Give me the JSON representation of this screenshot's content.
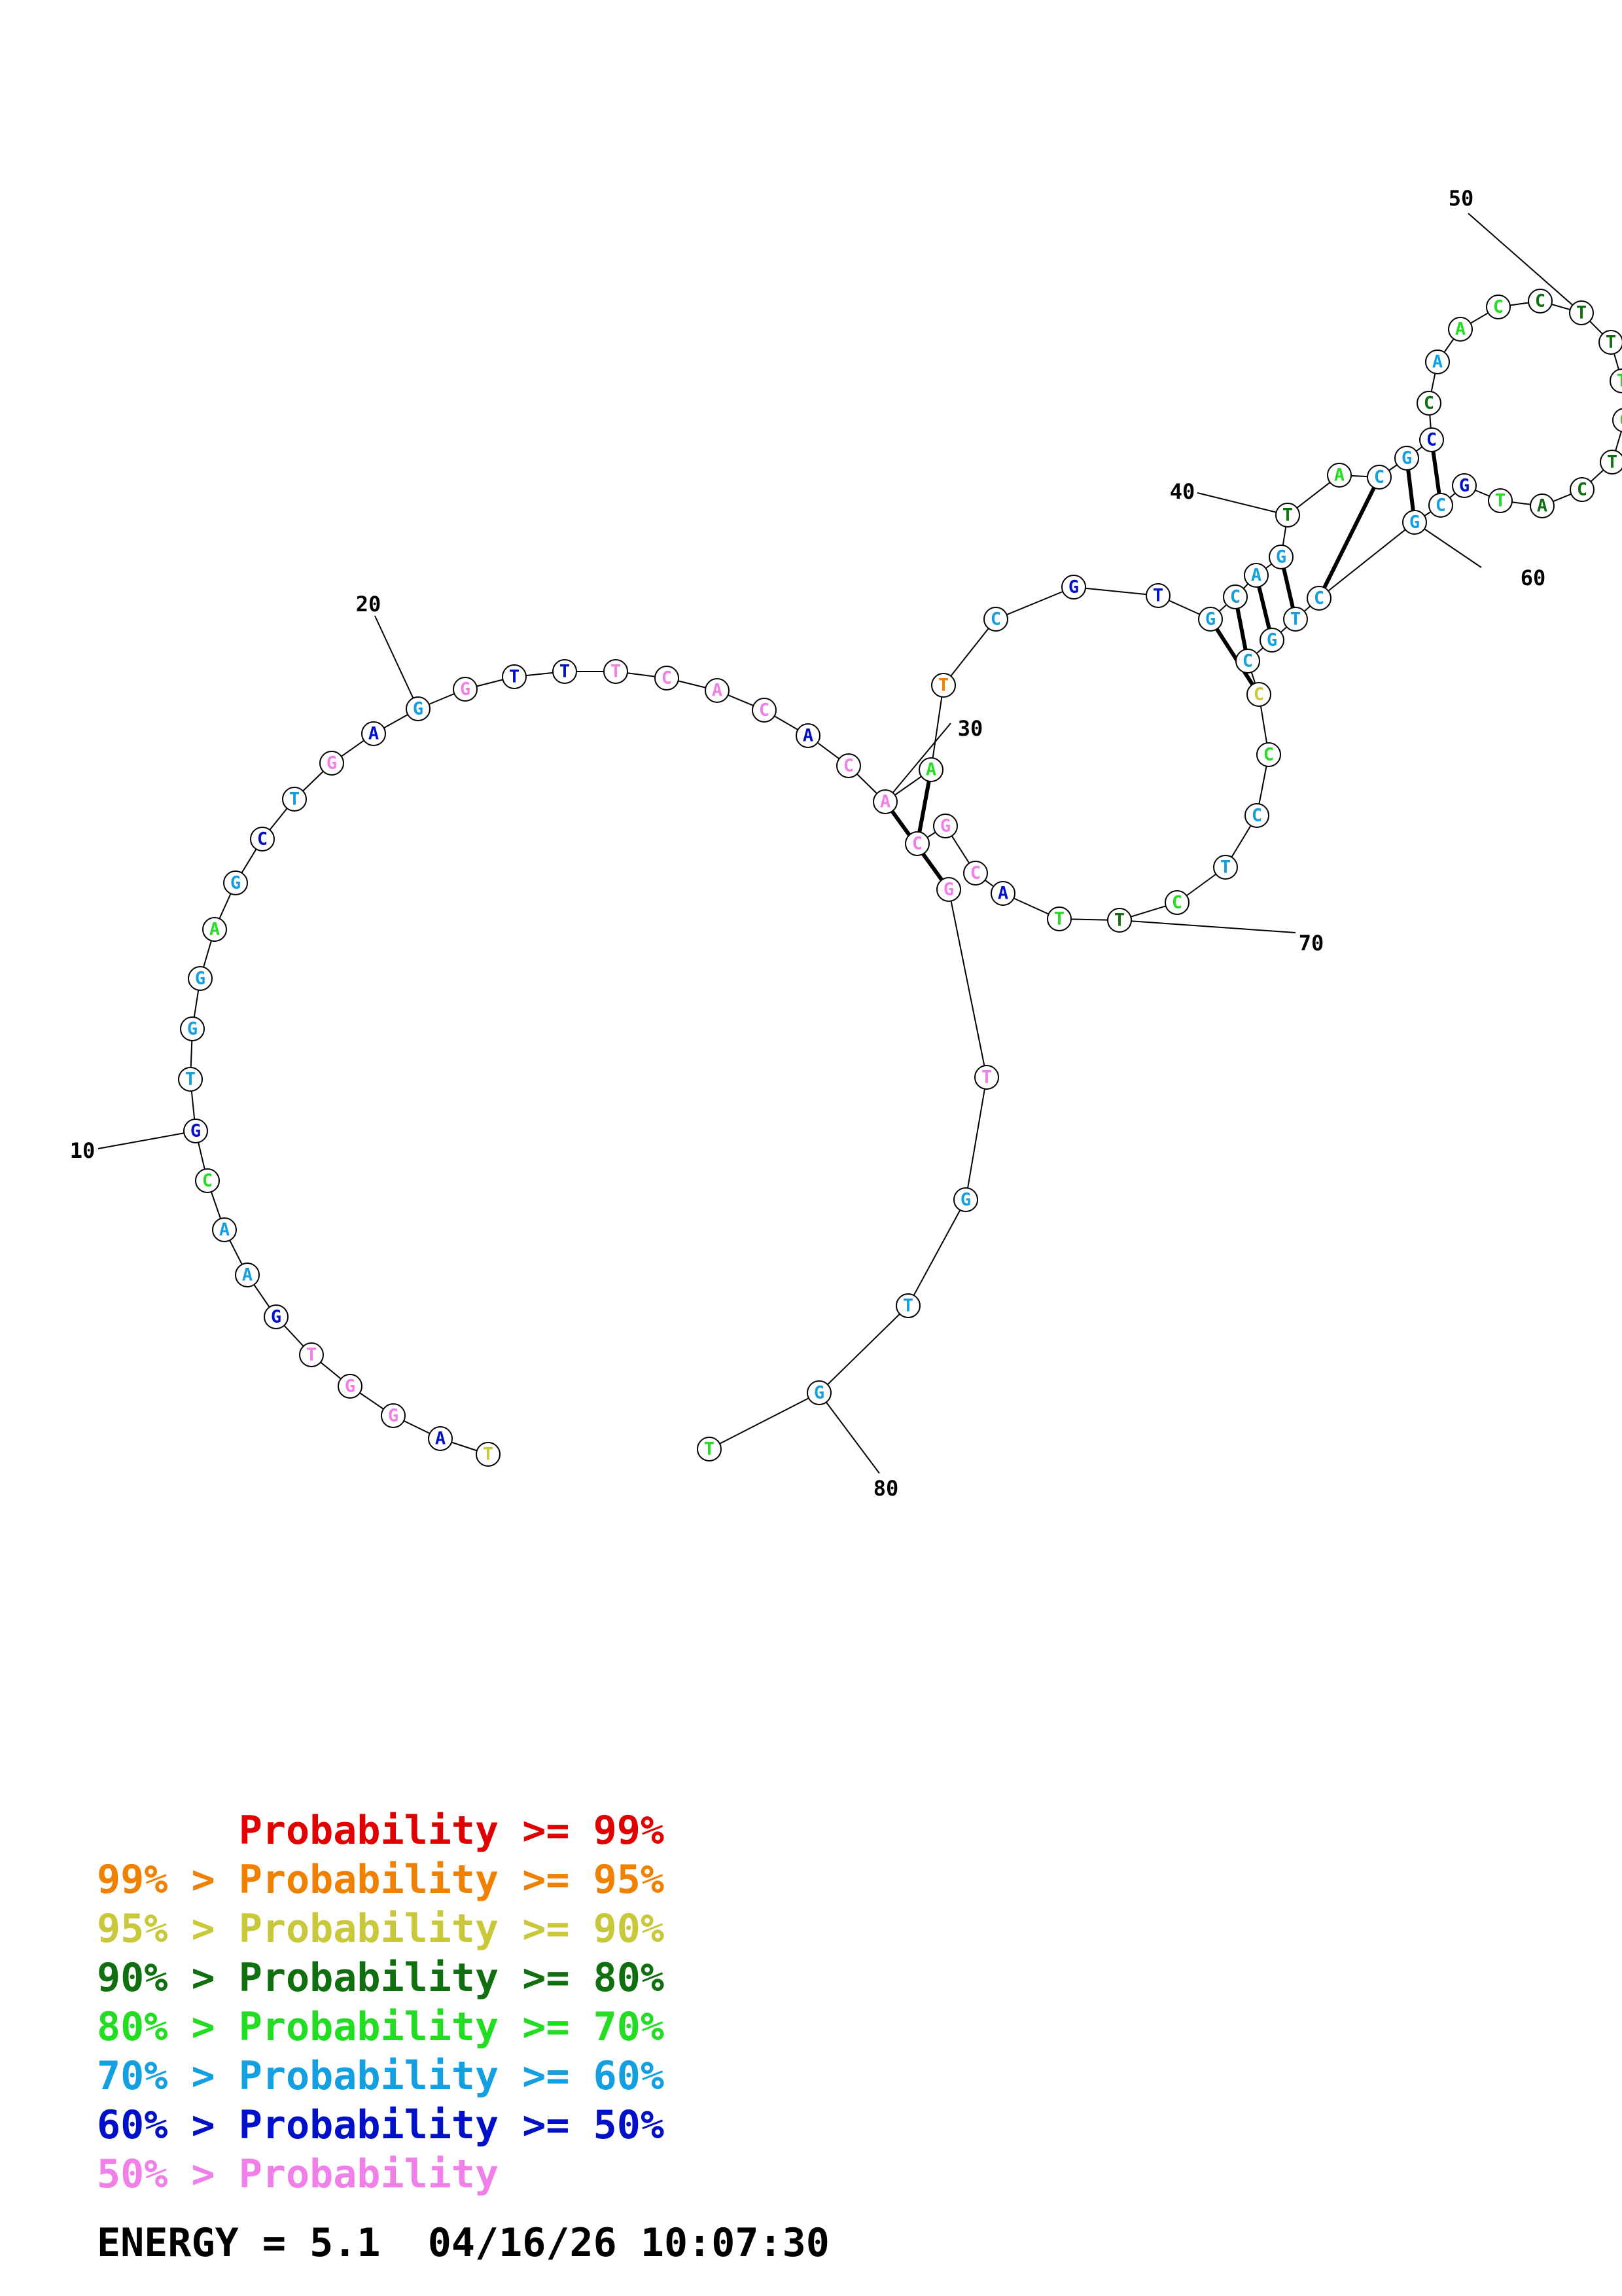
{
  "colors": {
    "p99": "#e00000",
    "p95": "#f08000",
    "p90": "#c8c83a",
    "p80": "#107010",
    "p70": "#22dd22",
    "p60": "#14a0e0",
    "p50": "#0010c8",
    "p0": "#f080e8"
  },
  "sequence": [
    {
      "n": 1,
      "b": "T",
      "c": "p90"
    },
    {
      "n": 2,
      "b": "A",
      "c": "p50"
    },
    {
      "n": 3,
      "b": "G",
      "c": "p0"
    },
    {
      "n": 4,
      "b": "G",
      "c": "p0"
    },
    {
      "n": 5,
      "b": "T",
      "c": "p0"
    },
    {
      "n": 6,
      "b": "G",
      "c": "p50"
    },
    {
      "n": 7,
      "b": "A",
      "c": "p60"
    },
    {
      "n": 8,
      "b": "A",
      "c": "p60"
    },
    {
      "n": 9,
      "b": "C",
      "c": "p70"
    },
    {
      "n": 10,
      "b": "G",
      "c": "p50"
    },
    {
      "n": 11,
      "b": "T",
      "c": "p60"
    },
    {
      "n": 12,
      "b": "G",
      "c": "p60"
    },
    {
      "n": 13,
      "b": "G",
      "c": "p60"
    },
    {
      "n": 14,
      "b": "A",
      "c": "p70"
    },
    {
      "n": 15,
      "b": "G",
      "c": "p60"
    },
    {
      "n": 16,
      "b": "C",
      "c": "p50"
    },
    {
      "n": 17,
      "b": "T",
      "c": "p60"
    },
    {
      "n": 18,
      "b": "G",
      "c": "p0"
    },
    {
      "n": 19,
      "b": "A",
      "c": "p50"
    },
    {
      "n": 20,
      "b": "G",
      "c": "p60"
    },
    {
      "n": 21,
      "b": "G",
      "c": "p0"
    },
    {
      "n": 22,
      "b": "T",
      "c": "p50"
    },
    {
      "n": 23,
      "b": "T",
      "c": "p50"
    },
    {
      "n": 24,
      "b": "T",
      "c": "p0"
    },
    {
      "n": 25,
      "b": "C",
      "c": "p0"
    },
    {
      "n": 26,
      "b": "A",
      "c": "p0"
    },
    {
      "n": 27,
      "b": "C",
      "c": "p0"
    },
    {
      "n": 28,
      "b": "A",
      "c": "p50"
    },
    {
      "n": 29,
      "b": "C",
      "c": "p0"
    },
    {
      "n": 30,
      "b": "A",
      "c": "p0"
    },
    {
      "n": 31,
      "b": "A",
      "c": "p70"
    },
    {
      "n": 32,
      "b": "T",
      "c": "p95"
    },
    {
      "n": 33,
      "b": "C",
      "c": "p60"
    },
    {
      "n": 34,
      "b": "G",
      "c": "p50"
    },
    {
      "n": 35,
      "b": "T",
      "c": "p50"
    },
    {
      "n": 36,
      "b": "G",
      "c": "p60"
    },
    {
      "n": 37,
      "b": "C",
      "c": "p60"
    },
    {
      "n": 38,
      "b": "A",
      "c": "p60"
    },
    {
      "n": 39,
      "b": "G",
      "c": "p60"
    },
    {
      "n": 40,
      "b": "T",
      "c": "p80"
    },
    {
      "n": 41,
      "b": "A",
      "c": "p70"
    },
    {
      "n": 42,
      "b": "C",
      "c": "p60"
    },
    {
      "n": 43,
      "b": "G",
      "c": "p60"
    },
    {
      "n": 44,
      "b": "C",
      "c": "p50"
    },
    {
      "n": 45,
      "b": "C",
      "c": "p80"
    },
    {
      "n": 46,
      "b": "A",
      "c": "p60"
    },
    {
      "n": 47,
      "b": "A",
      "c": "p70"
    },
    {
      "n": 48,
      "b": "C",
      "c": "p70"
    },
    {
      "n": 49,
      "b": "C",
      "c": "p80"
    },
    {
      "n": 50,
      "b": "T",
      "c": "p80"
    },
    {
      "n": 51,
      "b": "T",
      "c": "p80"
    },
    {
      "n": 52,
      "b": "T",
      "c": "p70"
    },
    {
      "n": 53,
      "b": "C",
      "c": "p70"
    },
    {
      "n": 54,
      "b": "T",
      "c": "p80"
    },
    {
      "n": 55,
      "b": "C",
      "c": "p80"
    },
    {
      "n": 56,
      "b": "A",
      "c": "p80"
    },
    {
      "n": 57,
      "b": "T",
      "c": "p70"
    },
    {
      "n": 58,
      "b": "G",
      "c": "p50"
    },
    {
      "n": 59,
      "b": "C",
      "c": "p60"
    },
    {
      "n": 60,
      "b": "G",
      "c": "p60"
    },
    {
      "n": 61,
      "b": "C",
      "c": "p60"
    },
    {
      "n": 62,
      "b": "T",
      "c": "p60"
    },
    {
      "n": 63,
      "b": "G",
      "c": "p60"
    },
    {
      "n": 64,
      "b": "C",
      "c": "p60"
    },
    {
      "n": 65,
      "b": "C",
      "c": "p90"
    },
    {
      "n": 66,
      "b": "C",
      "c": "p70"
    },
    {
      "n": 67,
      "b": "C",
      "c": "p60"
    },
    {
      "n": 68,
      "b": "T",
      "c": "p60"
    },
    {
      "n": 69,
      "b": "C",
      "c": "p70"
    },
    {
      "n": 70,
      "b": "T",
      "c": "p80"
    },
    {
      "n": 71,
      "b": "T",
      "c": "p70"
    },
    {
      "n": 72,
      "b": "A",
      "c": "p50"
    },
    {
      "n": 73,
      "b": "C",
      "c": "p0"
    },
    {
      "n": 74,
      "b": "G",
      "c": "p0"
    },
    {
      "n": 75,
      "b": "C",
      "c": "p0"
    },
    {
      "n": 76,
      "b": "G",
      "c": "p0"
    },
    {
      "n": 77,
      "b": "T",
      "c": "p0"
    },
    {
      "n": 78,
      "b": "G",
      "c": "p60"
    },
    {
      "n": 79,
      "b": "T",
      "c": "p60"
    },
    {
      "n": 80,
      "b": "G",
      "c": "p60"
    },
    {
      "n": 81,
      "b": "T",
      "c": "p70"
    }
  ],
  "pairs": [
    [
      30,
      76
    ],
    [
      31,
      75
    ],
    [
      36,
      65
    ],
    [
      37,
      64
    ],
    [
      38,
      63
    ],
    [
      39,
      62
    ],
    [
      42,
      61
    ],
    [
      43,
      60
    ],
    [
      44,
      59
    ]
  ],
  "index_labels": [
    {
      "n": 10,
      "text": "10"
    },
    {
      "n": 20,
      "text": "20"
    },
    {
      "n": 30,
      "text": "30"
    },
    {
      "n": 40,
      "text": "40"
    },
    {
      "n": 50,
      "text": "50"
    },
    {
      "n": 60,
      "text": "60"
    },
    {
      "n": 70,
      "text": "70"
    },
    {
      "n": 80,
      "text": "80"
    }
  ],
  "legend": [
    {
      "prefix": "     ",
      "text": "Probability >= 99%",
      "c": "p99"
    },
    {
      "prefix": "99% > ",
      "text": "Probability >= 95%",
      "c": "p95"
    },
    {
      "prefix": "95% > ",
      "text": "Probability >= 90%",
      "c": "p90"
    },
    {
      "prefix": "90% > ",
      "text": "Probability >= 80%",
      "c": "p80"
    },
    {
      "prefix": "80% > ",
      "text": "Probability >= 70%",
      "c": "p70"
    },
    {
      "prefix": "70% > ",
      "text": "Probability >= 60%",
      "c": "p60"
    },
    {
      "prefix": "60% > ",
      "text": "Probability >= 50%",
      "c": "p50"
    },
    {
      "prefix": "50% > ",
      "text": "Probability",
      "c": "p0"
    }
  ],
  "energy": "ENERGY = 5.1  04/16/26 10:07:30"
}
